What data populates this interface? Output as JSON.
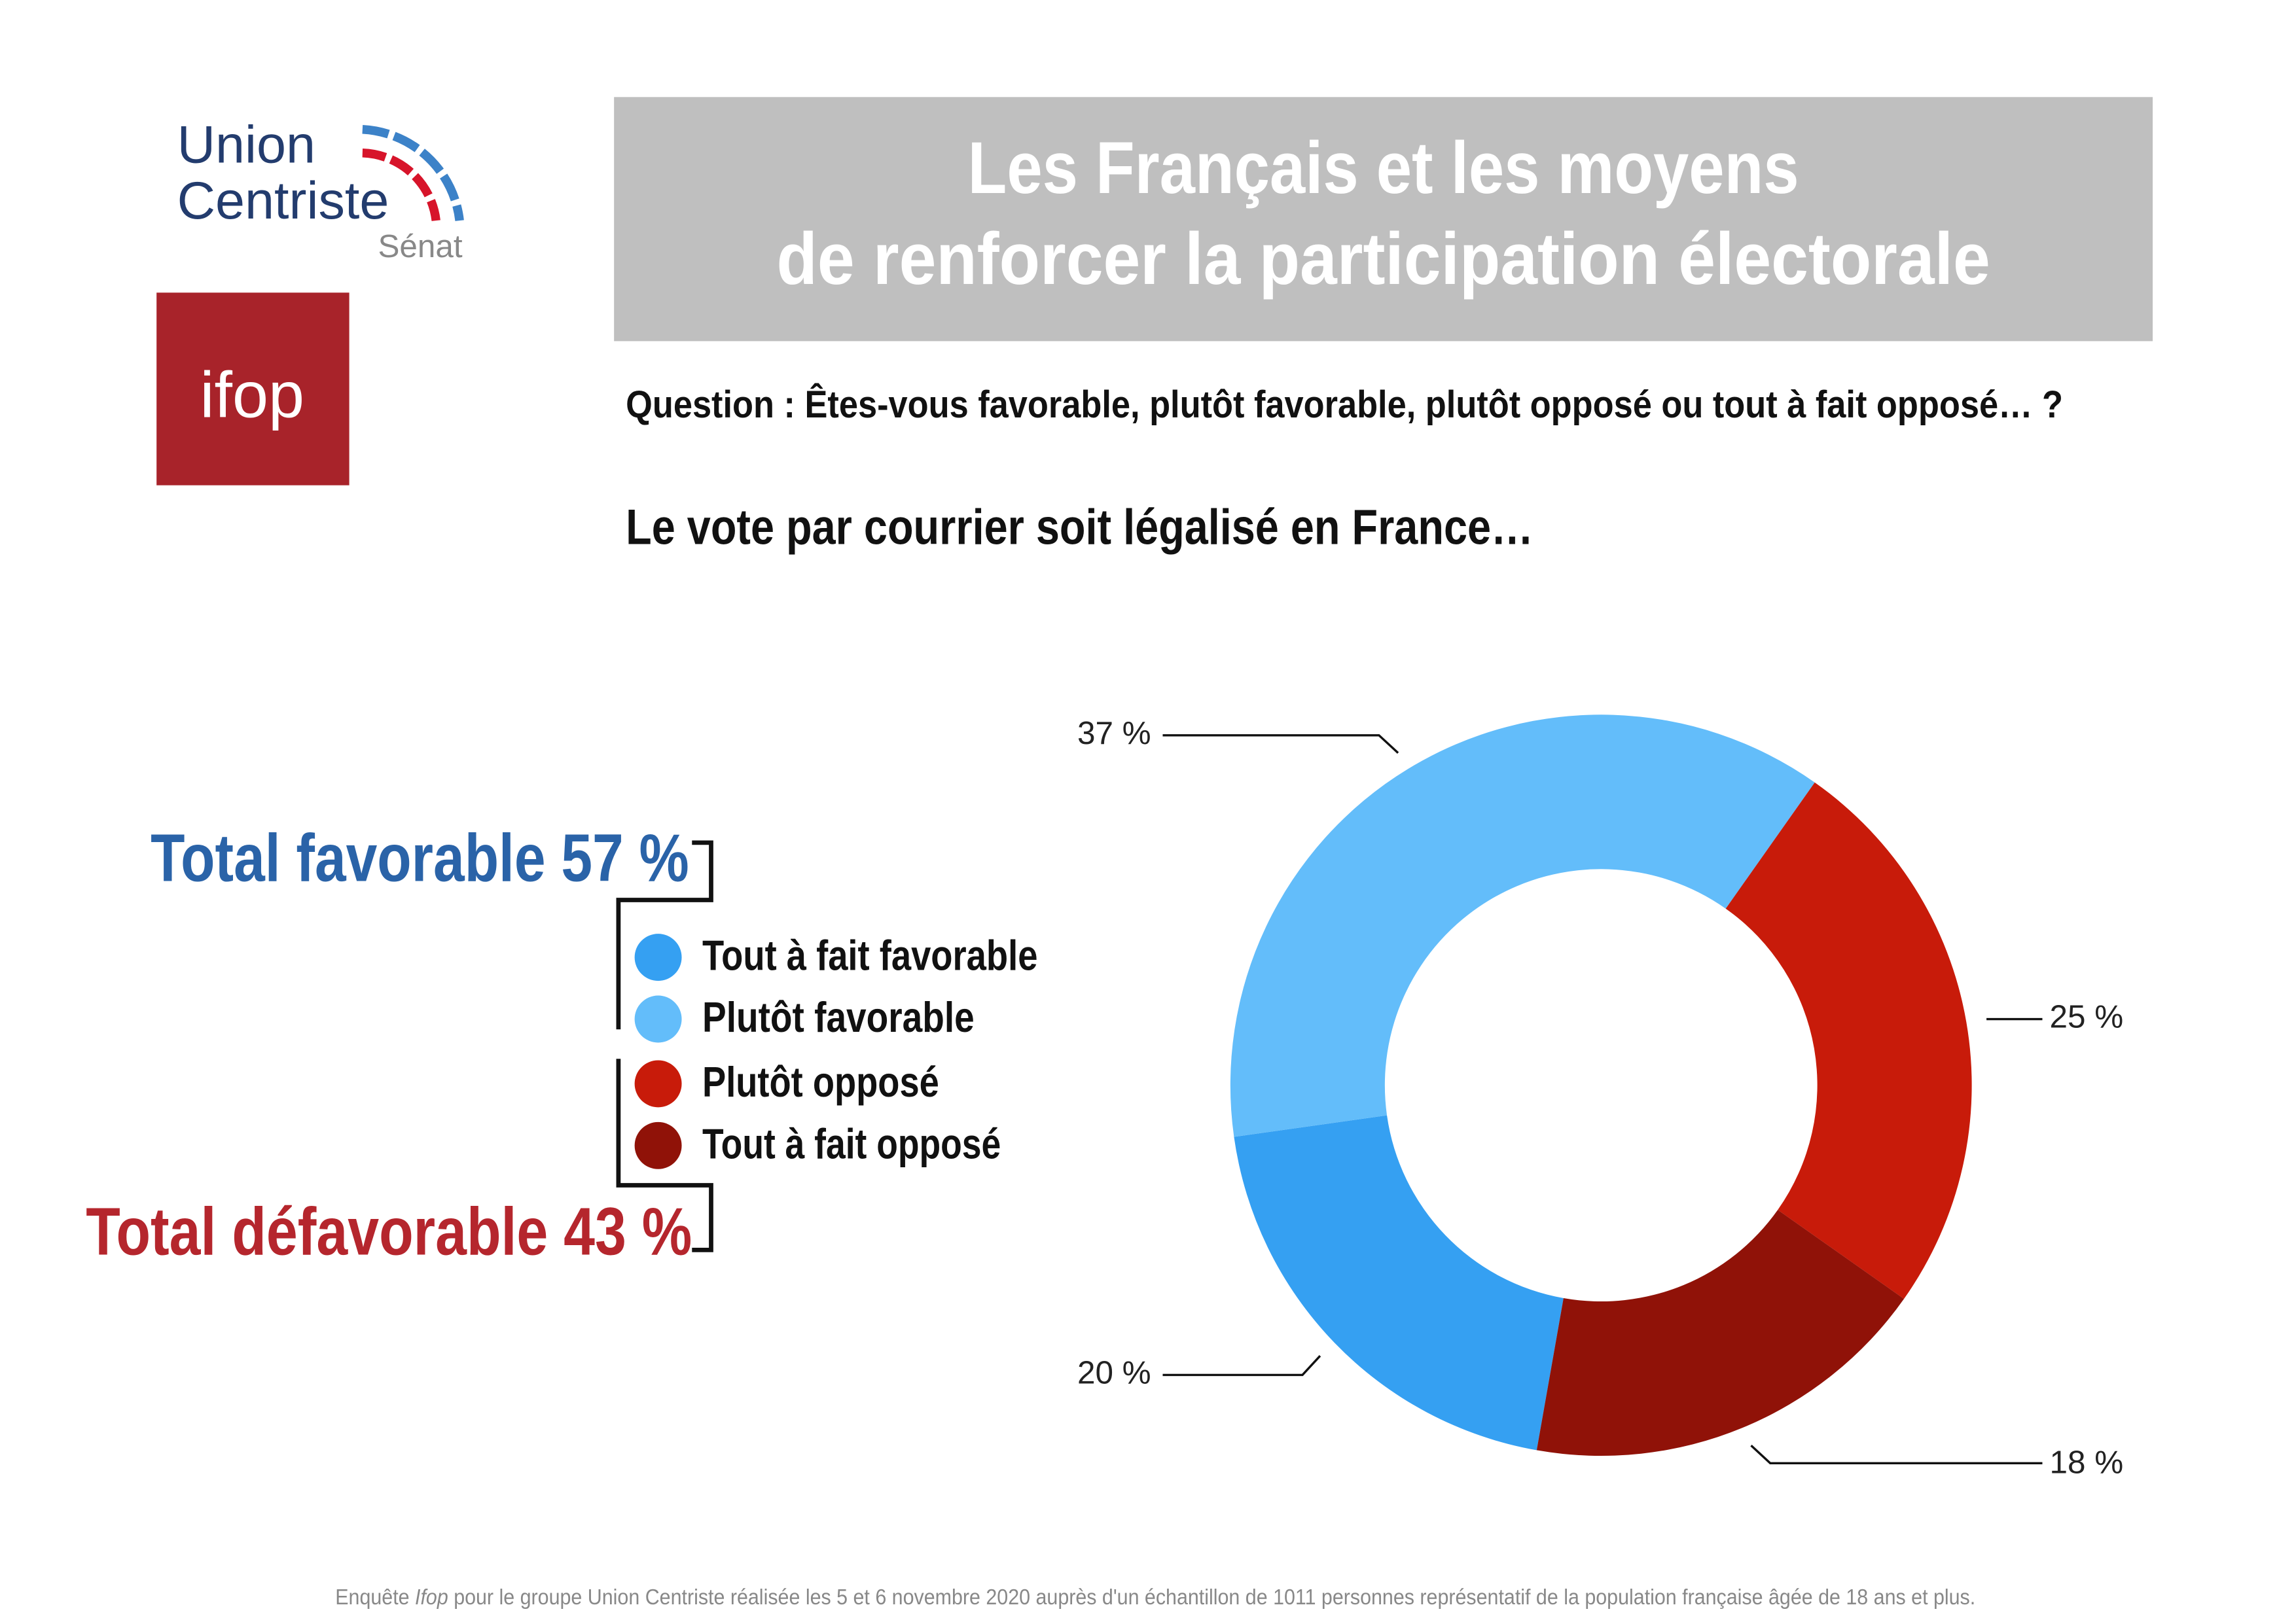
{
  "logo": {
    "line1": "Union",
    "line2": "Centriste",
    "line3": "Sénat",
    "ifop": "ifop"
  },
  "header": {
    "title_line1": "Les Français et les moyens",
    "title_line2": "de renforcer la participation électorale"
  },
  "question": "Question : Êtes-vous favorable, plutôt favorable, plutôt opposé ou tout à fait opposé… ?",
  "totals": {
    "favorable": "Total favorable 57 %",
    "defavorable": "Total défavorable 43 %"
  },
  "chart_data": {
    "type": "donut",
    "title": "Le vote par courrier soit légalisé en France…",
    "categories": [
      "Tout à fait favorable",
      "Plutôt favorable",
      "Plutôt opposé",
      "Tout à fait opposé"
    ],
    "values": [
      20,
      37,
      25,
      18
    ],
    "value_labels": [
      "20 %",
      "37 %",
      "25 %",
      "18 %"
    ],
    "colors": [
      "#35a0f2",
      "#63bdfa",
      "#c81b0a",
      "#901208"
    ]
  },
  "footer": {
    "part1": "Enquête ",
    "part2": "Ifop",
    "part3": " pour le groupe Union Centriste réalisée les 5 et 6 novembre 2020 auprès d'un échantillon de 1011 personnes représentatif de la population française âgée de 18 ans et plus."
  }
}
